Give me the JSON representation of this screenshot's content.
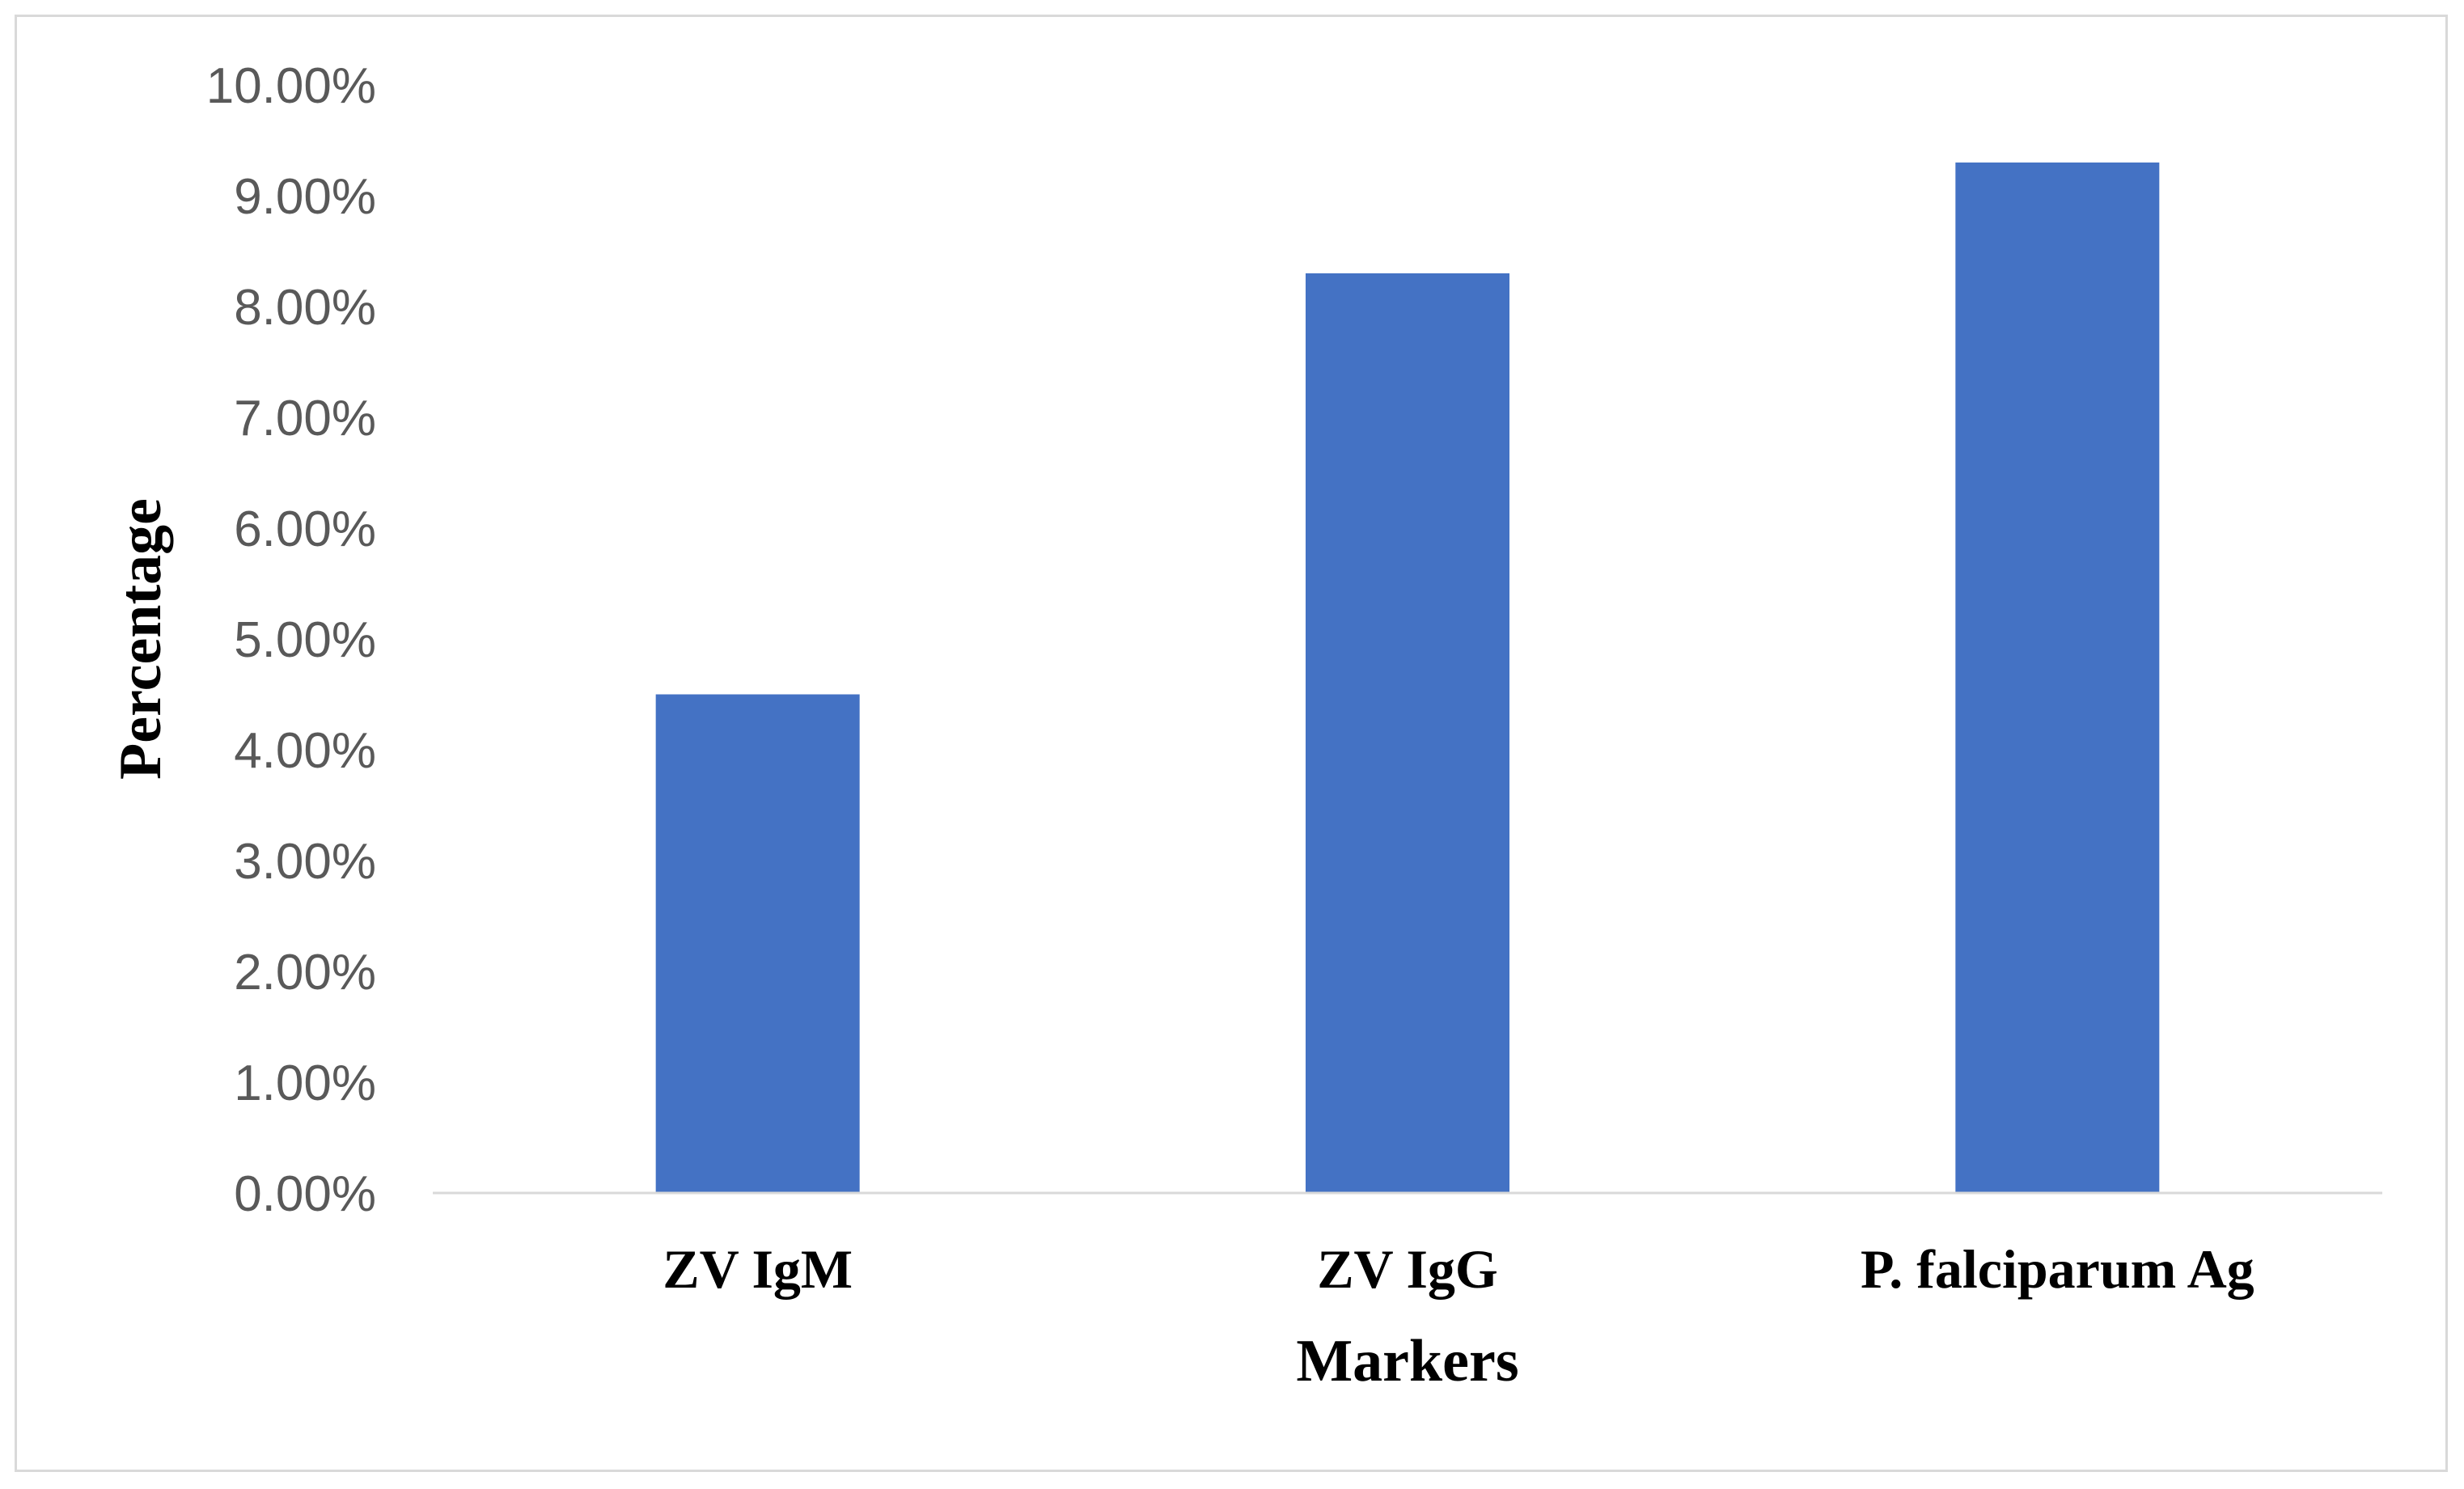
{
  "chart_data": {
    "type": "bar",
    "title": "",
    "xlabel": "Markers",
    "ylabel": "Percentage",
    "categories": [
      "ZV IgM",
      "ZV IgG",
      "P. falciparum Ag"
    ],
    "series": [
      {
        "values": [
          4.5,
          8.3,
          9.3
        ],
        "color": "#4472c4"
      }
    ],
    "yticks": [
      "0.00%",
      "1.00%",
      "2.00%",
      "3.00%",
      "4.00%",
      "5.00%",
      "6.00%",
      "7.00%",
      "8.00%",
      "9.00%",
      "10.00%"
    ],
    "ylim": [
      0,
      10
    ],
    "grid": false,
    "legend": "none"
  }
}
